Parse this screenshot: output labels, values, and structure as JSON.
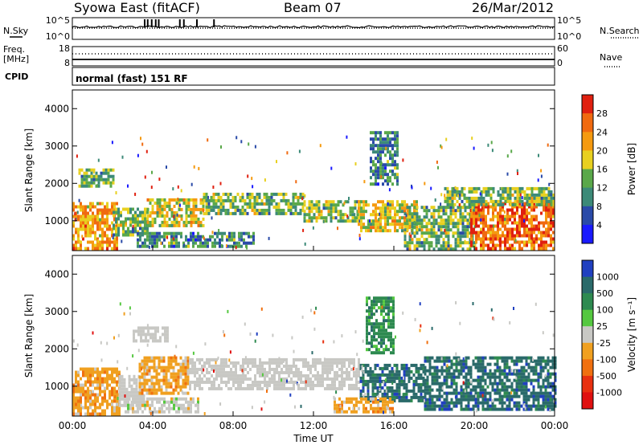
{
  "header": {
    "title": "Syowa East (fitACF)",
    "beam": "Beam 07",
    "date": "26/Mar/2012"
  },
  "side_labels": {
    "nsky": "N.Sky",
    "nsearch": "N.Search",
    "freq": "Freq.",
    "freq_unit": "[MHz]",
    "nave": "Nave",
    "cpid": "CPID",
    "mode": "normal (fast) 151 RF"
  },
  "colors": {
    "background": "#ffffff",
    "axis": "#000000",
    "gray_scatter": "#c8c8c4"
  },
  "chart_data": [
    {
      "type": "line",
      "panel": "noise",
      "left_ticks": [
        "10^5",
        "10^0"
      ],
      "right_ticks": [
        "10^5",
        "10^0"
      ],
      "series": [
        {
          "name": "N.Sky",
          "style": "solid"
        },
        {
          "name": "N.Search",
          "style": "dotted"
        }
      ],
      "spikes_hours": [
        3.6,
        3.75,
        3.95,
        4.15,
        4.3,
        5.35,
        5.55,
        6.2,
        7.05
      ]
    },
    {
      "type": "line",
      "panel": "frequency",
      "left_ticks": [
        "18",
        "8"
      ],
      "right_ticks": [
        "60",
        "0"
      ],
      "series": [
        {
          "name": "Freq.",
          "unit": "MHz",
          "style": "solid",
          "value": 10.5
        },
        {
          "name": "Nave",
          "style": "dotted",
          "value": 38
        }
      ]
    },
    {
      "type": "heatmap",
      "panel": "power",
      "xlabel": "",
      "ylabel": "Slant Range [km]",
      "ylim": [
        200,
        4500
      ],
      "yticks": [
        1000,
        2000,
        3000,
        4000
      ],
      "colorbar_label": "Power [dB]",
      "colorbar_ticks": [
        "4",
        "8",
        "12",
        "16",
        "20",
        "24",
        "28"
      ],
      "colorbar_colors": [
        "#1a1aff",
        "#2a4aa8",
        "#3c8a78",
        "#5aa84a",
        "#e8d020",
        "#f59a10",
        "#f06a10",
        "#e02010"
      ],
      "regions": [
        {
          "h0": 0.0,
          "h1": 2.2,
          "r0": 250,
          "r1": 1500,
          "level": 0.78
        },
        {
          "h0": 0.3,
          "h1": 2.0,
          "r0": 1900,
          "r1": 2400,
          "level": 0.38
        },
        {
          "h0": 2.0,
          "h1": 3.7,
          "r0": 600,
          "r1": 1350,
          "level": 0.45
        },
        {
          "h0": 3.7,
          "h1": 6.5,
          "r0": 850,
          "r1": 1600,
          "level": 0.5
        },
        {
          "h0": 6.5,
          "h1": 11.5,
          "r0": 1150,
          "r1": 1750,
          "level": 0.48
        },
        {
          "h0": 3.2,
          "h1": 9.0,
          "r0": 300,
          "r1": 700,
          "level": 0.3
        },
        {
          "h0": 11.5,
          "h1": 14.3,
          "r0": 950,
          "r1": 1550,
          "level": 0.4
        },
        {
          "h0": 14.2,
          "h1": 17.2,
          "r0": 700,
          "r1": 1550,
          "level": 0.62
        },
        {
          "h0": 14.8,
          "h1": 16.2,
          "r0": 2000,
          "r1": 3400,
          "level": 0.35
        },
        {
          "h0": 16.5,
          "h1": 20.0,
          "r0": 250,
          "r1": 1400,
          "level": 0.45
        },
        {
          "h0": 19.8,
          "h1": 24.0,
          "r0": 250,
          "r1": 1500,
          "level": 0.8
        },
        {
          "h0": 18.5,
          "h1": 24.0,
          "r0": 1400,
          "r1": 1900,
          "level": 0.42
        }
      ]
    },
    {
      "type": "heatmap",
      "panel": "velocity",
      "xlabel": "Time UT",
      "ylabel": "Slant Range [km]",
      "ylim": [
        200,
        4500
      ],
      "yticks": [
        1000,
        2000,
        3000,
        4000
      ],
      "xlim": [
        0,
        24
      ],
      "xticks": [
        "00:00",
        "04:00",
        "08:00",
        "12:00",
        "16:00",
        "20:00",
        "00:00"
      ],
      "colorbar_label": "Velocity [m s⁻¹]",
      "colorbar_ticks": [
        "1000",
        "500",
        "100",
        "25",
        "-25",
        "-100",
        "-500",
        "-1000"
      ],
      "colorbar_colors": [
        "#2040c0",
        "#2a6a6a",
        "#2e8a50",
        "#55c840",
        "#c8c8c4",
        "#f0a020",
        "#f07010",
        "#e83010",
        "#e01010"
      ],
      "regions": [
        {
          "h0": 0.0,
          "h1": 2.3,
          "r0": 250,
          "r1": 1500,
          "level": "-100"
        },
        {
          "h0": 2.3,
          "h1": 3.6,
          "r0": 500,
          "r1": 1300,
          "level": "25"
        },
        {
          "h0": 3.3,
          "h1": 5.8,
          "r0": 800,
          "r1": 1800,
          "level": "-100"
        },
        {
          "h0": 2.6,
          "h1": 6.2,
          "r0": 300,
          "r1": 700,
          "level": "-25"
        },
        {
          "h0": 5.8,
          "h1": 14.3,
          "r0": 950,
          "r1": 1750,
          "level": "25"
        },
        {
          "h0": 3.0,
          "h1": 4.8,
          "r0": 2200,
          "r1": 2600,
          "level": "25"
        },
        {
          "h0": 14.3,
          "h1": 17.5,
          "r0": 650,
          "r1": 1600,
          "level": "500"
        },
        {
          "h0": 14.6,
          "h1": 16.0,
          "r0": 1900,
          "r1": 3400,
          "level": "100"
        },
        {
          "h0": 13.0,
          "h1": 16.0,
          "r0": 300,
          "r1": 700,
          "level": "-100"
        },
        {
          "h0": 17.5,
          "h1": 24.0,
          "r0": 400,
          "r1": 1800,
          "level": "500"
        }
      ]
    }
  ]
}
